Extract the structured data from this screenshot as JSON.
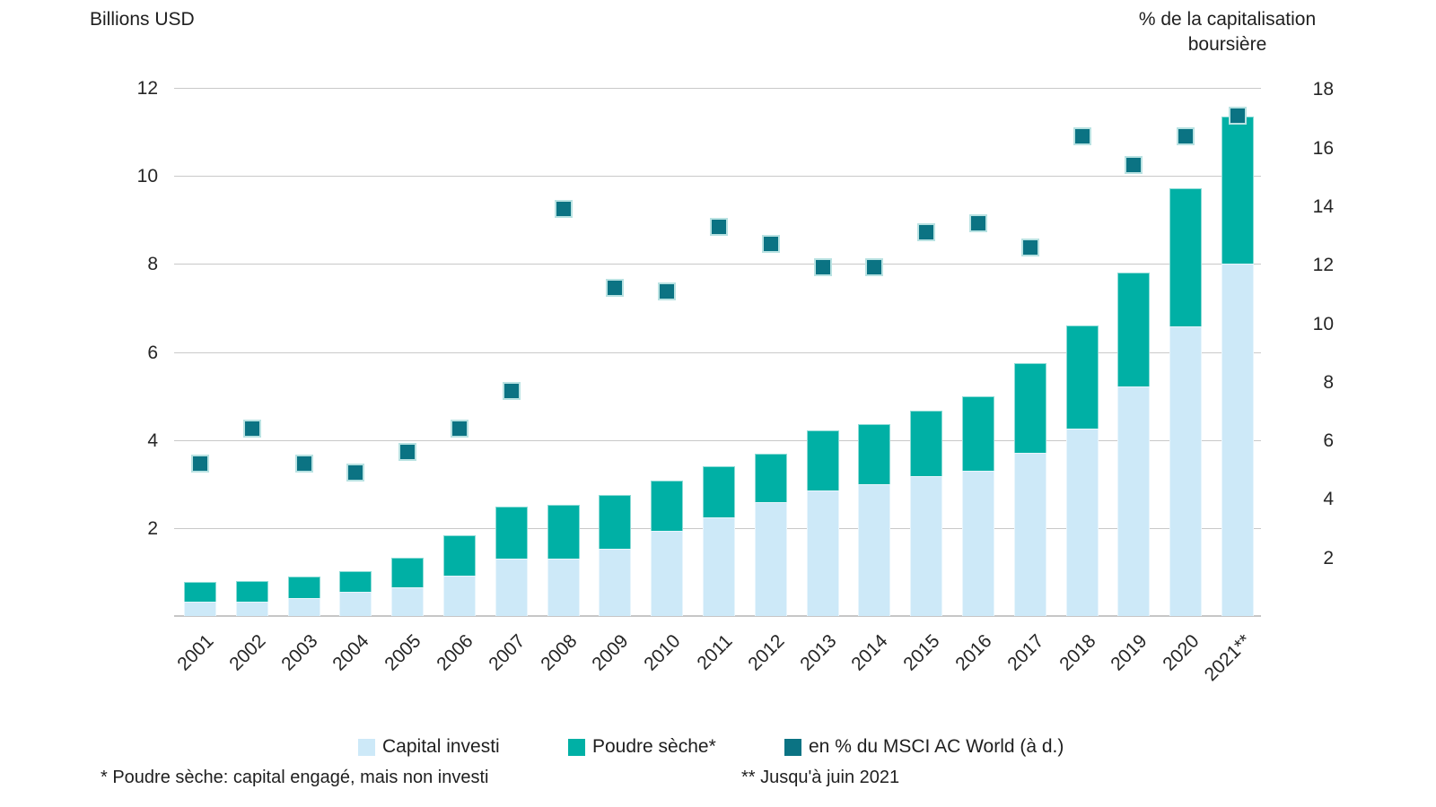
{
  "titles": {
    "left_axis_title": "Billions USD",
    "right_axis_title_line1": "% de la capitalisation",
    "right_axis_title_line2": "boursière"
  },
  "legend": {
    "items": [
      {
        "label": "Capital investi",
        "color": "#cde9f8"
      },
      {
        "label": "Poudre sèche*",
        "color": "#00b0a5"
      },
      {
        "label": "en % du MSCI AC World (à d.)",
        "color": "#0b7383"
      }
    ]
  },
  "footnotes": {
    "note1": "* Poudre sèche: capital engagé, mais non investi",
    "note2": "** Jusqu'à juin 2021"
  },
  "colors": {
    "capital_investi": "#cde9f8",
    "poudre_seche": "#00b0a5",
    "pct_msci_square": "#0b7383",
    "gridline": "#c9c9c9",
    "text": "#262626"
  },
  "chart_data": {
    "type": "bar",
    "subtype": "stacked-bars-with-right-axis-square-markers",
    "title": "",
    "xlabel": "",
    "ylabel_left": "Billions USD",
    "ylabel_right": "% de la capitalisation boursière",
    "grid": "horizontal-on",
    "legend_position": "bottom-center",
    "categories": [
      "2001",
      "2002",
      "2003",
      "2004",
      "2005",
      "2006",
      "2007",
      "2008",
      "2009",
      "2010",
      "2011",
      "2012",
      "2013",
      "2014",
      "2015",
      "2016",
      "2017",
      "2018",
      "2019",
      "2020",
      "2021**"
    ],
    "series": [
      {
        "name": "Capital investi",
        "type": "bar-stack-segment",
        "axis": "left",
        "color": "#cde9f8",
        "values": [
          0.33,
          0.33,
          0.41,
          0.54,
          0.65,
          0.91,
          1.31,
          1.3,
          1.52,
          1.93,
          2.25,
          2.59,
          2.85,
          3.0,
          3.17,
          3.31,
          3.71,
          4.25,
          5.22,
          6.59,
          8.01
        ]
      },
      {
        "name": "Poudre sèche*",
        "type": "bar-stack-segment",
        "axis": "left",
        "color": "#00b0a5",
        "values": [
          0.44,
          0.46,
          0.49,
          0.47,
          0.68,
          0.93,
          1.18,
          1.23,
          1.24,
          1.15,
          1.15,
          1.1,
          1.37,
          1.37,
          1.49,
          1.69,
          2.04,
          2.36,
          2.58,
          3.12,
          3.34
        ]
      },
      {
        "name": "en % du MSCI AC World (à d.)",
        "type": "scatter-square",
        "axis": "right",
        "color": "#0b7383",
        "values": [
          5.2,
          6.4,
          5.2,
          4.9,
          5.6,
          6.4,
          7.7,
          13.9,
          11.2,
          11.1,
          13.3,
          12.7,
          11.9,
          11.9,
          13.1,
          13.4,
          12.6,
          16.4,
          15.4,
          16.4,
          17.1
        ]
      }
    ],
    "left_axis": {
      "ticks": [
        2,
        4,
        6,
        8,
        10,
        12
      ],
      "range": [
        0,
        12.6
      ]
    },
    "right_axis": {
      "ticks": [
        2,
        4,
        6,
        8,
        10,
        12,
        14,
        16,
        18
      ],
      "range": [
        0,
        18.6
      ]
    }
  }
}
